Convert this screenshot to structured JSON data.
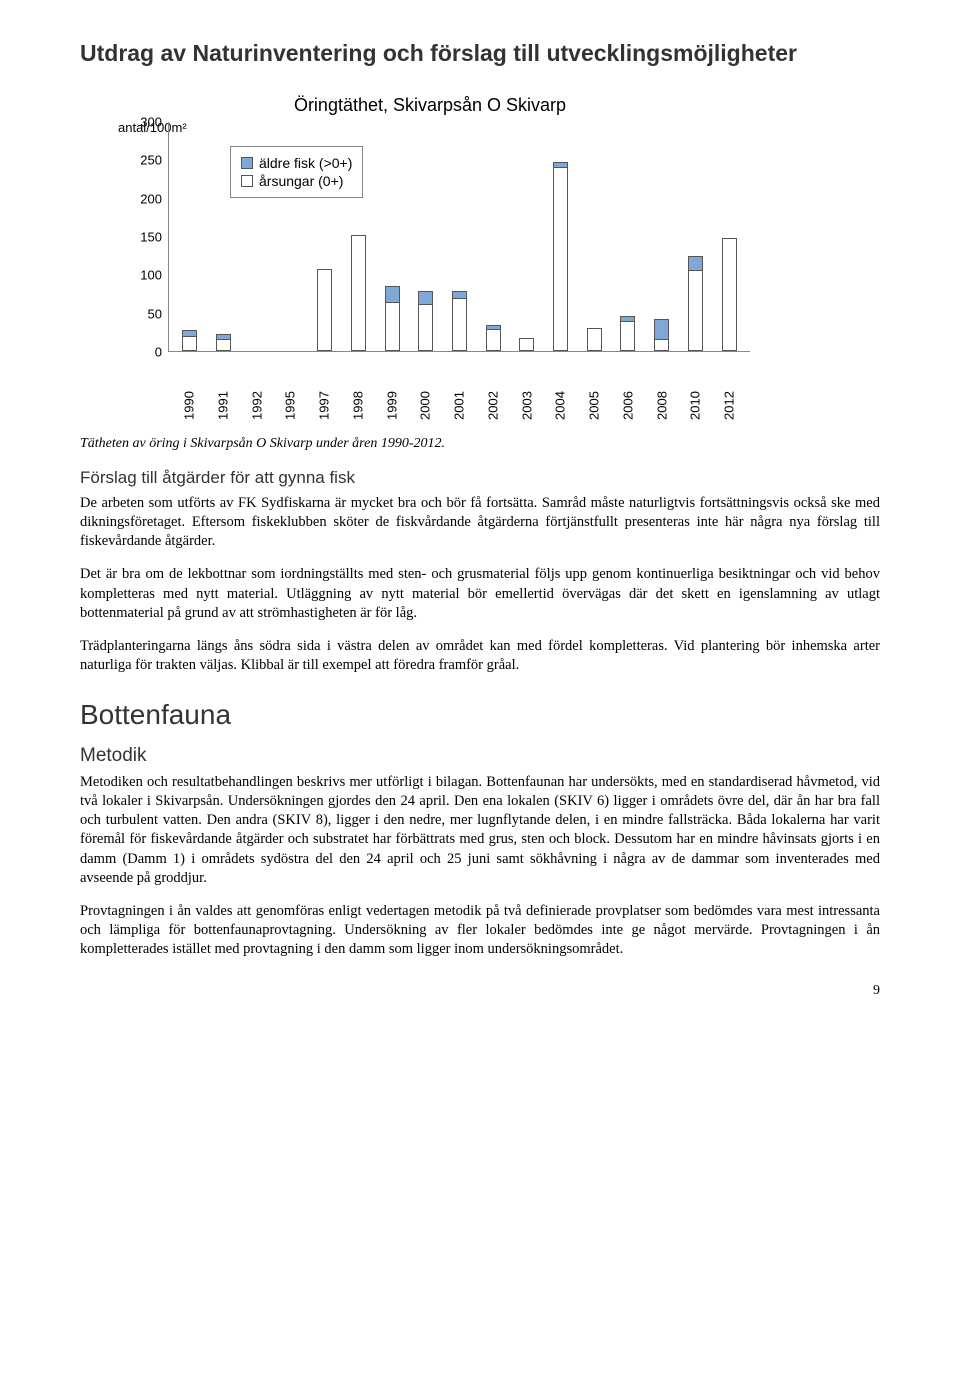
{
  "page_title": "Utdrag av Naturinventering och förslag till utvecklingsmöjligheter",
  "chart": {
    "type": "bar",
    "title": "Öringtäthet, Skivarpsån O Skivarp",
    "y_axis_label": "antal/100m²",
    "ylim": [
      0,
      300
    ],
    "ytick_step": 50,
    "yticks": [
      0,
      50,
      100,
      150,
      200,
      250,
      300
    ],
    "categories": [
      "1990",
      "1991",
      "1992",
      "1995",
      "1997",
      "1998",
      "1999",
      "2000",
      "2001",
      "2002",
      "2003",
      "2004",
      "2005",
      "2006",
      "2008",
      "2010",
      "2012"
    ],
    "legend": [
      {
        "label": "äldre fisk (>0+)",
        "color": "#7fa8d9"
      },
      {
        "label": "årsungar (0+)",
        "color": "#ffffff"
      }
    ],
    "series_older": [
      10,
      8,
      0,
      0,
      0,
      0,
      22,
      19,
      10,
      6,
      0,
      7,
      0,
      8,
      27,
      20,
      0
    ],
    "series_young": [
      18,
      14,
      0,
      0,
      108,
      152,
      63,
      60,
      68,
      28,
      17,
      240,
      30,
      38,
      15,
      105,
      148
    ],
    "color_older": "#7fa8d9",
    "color_young": "#ffffff",
    "border_color": "#555555",
    "axis_color": "#888888",
    "background_color": "#ffffff"
  },
  "caption": "Tätheten av öring i Skivarpsån O Skivarp under åren 1990-2012.",
  "h3": "Förslag till åtgärder för att gynna fisk",
  "p1": "De arbeten som utförts av FK Sydfiskarna är mycket bra och bör få fortsätta. Samråd måste naturligtvis fortsättningsvis också ske med dikningsföretaget. Eftersom fiskeklubben sköter de fiskvårdande åtgärderna förtjänstfullt presenteras inte här några nya förslag till fiskevårdande åtgärder.",
  "p2": "Det är bra om de lekbottnar som iordningställts med sten- och grusmaterial följs upp genom kontinuerliga besiktningar och vid behov kompletteras med nytt material. Utläggning av nytt material bör emellertid övervägas där det skett en igenslamning av utlagt bottenmaterial på grund av att strömhastigheten är för låg.",
  "p3": "Trädplanteringarna längs åns södra sida i västra delen av området kan med fördel kompletteras. Vid plantering bör inhemska arter naturliga för trakten väljas. Klibbal är till exempel att föredra framför gråal.",
  "h2": "Bottenfauna",
  "h3b": "Metodik",
  "p4": "Metodiken och resultatbehandlingen beskrivs mer utförligt i bilagan. Bottenfaunan har undersökts, med en standardiserad håvmetod, vid två lokaler i Skivarpsån. Undersökningen gjordes den 24 april. Den ena lokalen (SKIV 6) ligger i områdets övre del, där ån har bra fall och turbulent vatten. Den andra (SKIV 8), ligger i den nedre, mer lugnflytande delen, i en mindre fallsträcka. Båda lokalerna har varit föremål för fiskevårdande åtgärder och substratet har förbättrats med grus, sten och block. Dessutom har en mindre håvinsats gjorts i en damm (Damm 1) i områdets sydöstra del den 24 april och 25 juni samt sökhåvning i några av de dammar som inventerades med avseende på groddjur.",
  "p5": "Provtagningen i ån valdes att genomföras enligt vedertagen metodik på två definierade provplatser som bedömdes vara mest intressanta och lämpliga för bottenfaunaprovtagning. Undersökning av fler lokaler bedömdes inte ge något mervärde. Provtagningen i ån kompletterades istället med provtagning i den damm som ligger inom undersökningsområdet.",
  "page_number": "9"
}
